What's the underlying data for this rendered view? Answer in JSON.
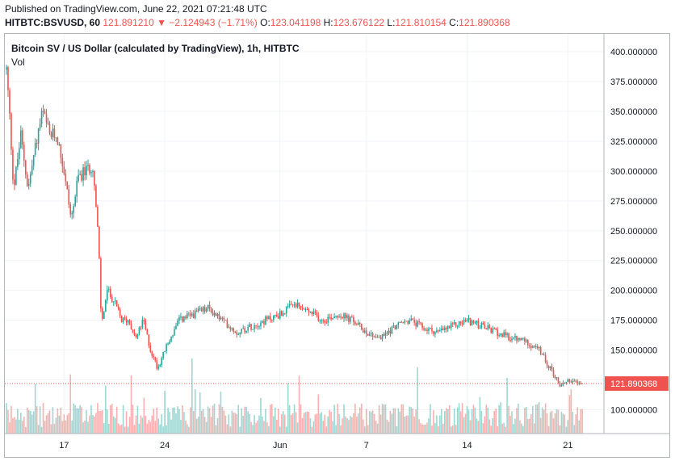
{
  "header": {
    "published": "Published on TradingView.com, June 22, 2021 07:21:48 UTC",
    "symbol": "HITBTC:BSVUSD, 60",
    "last": "121.891210",
    "arrow": "▼",
    "change": "−2.124943 (−1.71%)",
    "o_label": "O:",
    "o_value": "123.041198",
    "h_label": "H:",
    "h_value": "123.676122",
    "l_label": "L:",
    "l_value": "121.810154",
    "c_label": "C:",
    "c_value": "121.890368"
  },
  "colors": {
    "up": "#26a69a",
    "down": "#ef5350",
    "grid": "#f0f3fa",
    "axis": "#b2b5be",
    "price_tag": "#ef5350"
  },
  "chart_data": {
    "type": "candlestick",
    "title": "Bitcoin SV / US Dollar (calculated by TradingView), 1h, HITBTC",
    "volume_label": "Vol",
    "y_axis": {
      "side": "right",
      "ylim": [
        80,
        415
      ],
      "ticks": [
        "400.000000",
        "375.000000",
        "350.000000",
        "325.000000",
        "300.000000",
        "275.000000",
        "250.000000",
        "225.000000",
        "200.000000",
        "175.000000",
        "150.000000",
        "125.000000",
        "100.000000"
      ],
      "tick_values": [
        400,
        375,
        350,
        325,
        300,
        275,
        250,
        225,
        200,
        175,
        150,
        125,
        100
      ]
    },
    "x_axis": {
      "labels": [
        "17",
        "24",
        "Jun",
        "7",
        "14",
        "21"
      ],
      "label_day_index": [
        4,
        11,
        19,
        25,
        32,
        39
      ]
    },
    "x_range_days": [
      0,
      41
    ],
    "last_price": 121.890368,
    "last_price_label": "121.890368",
    "price_path": [
      [
        0,
        385
      ],
      [
        0.2,
        350
      ],
      [
        0.5,
        285
      ],
      [
        1.0,
        330
      ],
      [
        1.5,
        285
      ],
      [
        2.0,
        320
      ],
      [
        2.5,
        350
      ],
      [
        3.0,
        330
      ],
      [
        3.5,
        330
      ],
      [
        4.0,
        300
      ],
      [
        4.5,
        260
      ],
      [
        5.0,
        295
      ],
      [
        5.5,
        300
      ],
      [
        6.0,
        305
      ],
      [
        6.4,
        240
      ],
      [
        6.6,
        170
      ],
      [
        7.0,
        200
      ],
      [
        7.5,
        190
      ],
      [
        8.0,
        175
      ],
      [
        8.5,
        175
      ],
      [
        9.0,
        160
      ],
      [
        9.5,
        175
      ],
      [
        10.0,
        150
      ],
      [
        10.5,
        135
      ],
      [
        11.0,
        150
      ],
      [
        12.0,
        175
      ],
      [
        13.0,
        180
      ],
      [
        14.0,
        185
      ],
      [
        15.0,
        175
      ],
      [
        16.0,
        165
      ],
      [
        17.0,
        170
      ],
      [
        18.0,
        175
      ],
      [
        19.0,
        180
      ],
      [
        20.0,
        188
      ],
      [
        21.0,
        182
      ],
      [
        22.0,
        175
      ],
      [
        23.0,
        180
      ],
      [
        24.0,
        175
      ],
      [
        25.0,
        165
      ],
      [
        26.0,
        160
      ],
      [
        27.0,
        170
      ],
      [
        28.0,
        175
      ],
      [
        29.0,
        168
      ],
      [
        30.0,
        165
      ],
      [
        31.0,
        170
      ],
      [
        32.0,
        175
      ],
      [
        33.0,
        170
      ],
      [
        34.0,
        165
      ],
      [
        35.0,
        160
      ],
      [
        36.0,
        158
      ],
      [
        37.0,
        150
      ],
      [
        38.0,
        130
      ],
      [
        38.5,
        120
      ],
      [
        39.0,
        125
      ],
      [
        39.5,
        122
      ],
      [
        40.0,
        121.9
      ]
    ]
  }
}
